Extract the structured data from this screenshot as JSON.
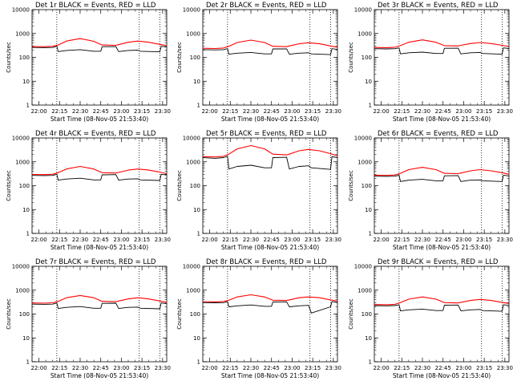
{
  "chart_data": [
    {
      "type": "line",
      "title": "Det 1r BLACK = Events, RED = LLD",
      "xlabel": "Start Time (08-Nov-05 21:53:40)",
      "ylabel": "Counts/sec",
      "ylog": true,
      "ylim": [
        1,
        10000
      ],
      "ytick_labels": [
        "1",
        "10",
        "100",
        "1000",
        "10000"
      ],
      "xlim": [
        "21:55",
        "23:33"
      ],
      "xtick_labels": [
        "22:00",
        "22:15",
        "22:30",
        "22:45",
        "23:00",
        "23:15",
        "23:30"
      ],
      "series": [
        {
          "color": "#000000",
          "x": [
            "21:55",
            "22:04",
            "22:10",
            "22:13",
            "22:14",
            "22:20",
            "22:30",
            "22:40",
            "22:45",
            "22:46",
            "22:56",
            "22:58",
            "23:05",
            "23:12",
            "23:14",
            "23:28",
            "23:29",
            "23:33"
          ],
          "y": [
            260,
            255,
            260,
            290,
            175,
            195,
            210,
            180,
            180,
            280,
            282,
            175,
            195,
            200,
            180,
            170,
            290,
            270
          ]
        },
        {
          "color": "#ff0000",
          "x": [
            "21:55",
            "22:04",
            "22:10",
            "22:14",
            "22:20",
            "22:30",
            "22:40",
            "22:46",
            "22:56",
            "22:58",
            "23:05",
            "23:12",
            "23:20",
            "23:28",
            "23:33"
          ],
          "y": [
            285,
            280,
            290,
            330,
            480,
            610,
            470,
            330,
            320,
            340,
            430,
            480,
            430,
            350,
            310
          ]
        }
      ]
    },
    {
      "type": "line",
      "title": "Det 2r BLACK = Events, RED = LLD",
      "xlabel": "Start Time (08-Nov-05 21:53:40)",
      "ylabel": "Counts/sec",
      "ylog": true,
      "ylim": [
        1,
        10000
      ],
      "ytick_labels": [
        "1",
        "10",
        "100",
        "1000",
        "10000"
      ],
      "xlim": [
        "21:55",
        "23:33"
      ],
      "xtick_labels": [
        "22:00",
        "22:15",
        "22:30",
        "22:45",
        "23:00",
        "23:15",
        "23:30"
      ],
      "series": [
        {
          "color": "#000000",
          "x": [
            "21:55",
            "22:04",
            "22:10",
            "22:13",
            "22:14",
            "22:20",
            "22:30",
            "22:40",
            "22:45",
            "22:46",
            "22:56",
            "22:58",
            "23:05",
            "23:12",
            "23:14",
            "23:28",
            "23:29",
            "23:33"
          ],
          "y": [
            210,
            205,
            210,
            230,
            135,
            150,
            160,
            140,
            140,
            225,
            228,
            135,
            150,
            155,
            140,
            130,
            230,
            215
          ]
        },
        {
          "color": "#ff0000",
          "x": [
            "21:55",
            "22:04",
            "22:10",
            "22:14",
            "22:20",
            "22:30",
            "22:40",
            "22:46",
            "22:56",
            "22:58",
            "23:05",
            "23:12",
            "23:20",
            "23:28",
            "23:33"
          ],
          "y": [
            240,
            235,
            245,
            290,
            420,
            530,
            420,
            290,
            280,
            300,
            370,
            410,
            370,
            300,
            265
          ]
        }
      ]
    },
    {
      "type": "line",
      "title": "Det 3r BLACK = Events, RED = LLD",
      "xlabel": "Start Time (08-Nov-05 21:53:40)",
      "ylabel": "Counts/sec",
      "ylog": true,
      "ylim": [
        1,
        10000
      ],
      "ytick_labels": [
        "1",
        "10",
        "100",
        "1000",
        "10000"
      ],
      "xlim": [
        "21:55",
        "23:33"
      ],
      "xtick_labels": [
        "22:00",
        "22:15",
        "22:30",
        "22:45",
        "23:00",
        "23:15",
        "23:30"
      ],
      "series": [
        {
          "color": "#000000",
          "x": [
            "21:55",
            "22:04",
            "22:10",
            "22:13",
            "22:14",
            "22:20",
            "22:30",
            "22:40",
            "22:45",
            "22:46",
            "22:56",
            "22:58",
            "23:05",
            "23:12",
            "23:14",
            "23:28",
            "23:29",
            "23:33"
          ],
          "y": [
            230,
            225,
            230,
            250,
            140,
            155,
            165,
            145,
            145,
            240,
            242,
            140,
            155,
            160,
            145,
            135,
            250,
            235
          ]
        },
        {
          "color": "#ff0000",
          "x": [
            "21:55",
            "22:04",
            "22:10",
            "22:14",
            "22:20",
            "22:30",
            "22:40",
            "22:46",
            "22:56",
            "22:58",
            "23:05",
            "23:12",
            "23:20",
            "23:28",
            "23:33"
          ],
          "y": [
            260,
            255,
            265,
            310,
            430,
            540,
            430,
            310,
            300,
            320,
            380,
            420,
            380,
            320,
            285
          ]
        }
      ]
    },
    {
      "type": "line",
      "title": "Det 4r BLACK = Events, RED = LLD",
      "xlabel": "Start Time (08-Nov-05 21:53:40)",
      "ylabel": "Counts/sec",
      "ylog": true,
      "ylim": [
        1,
        10000
      ],
      "ytick_labels": [
        "1",
        "10",
        "100",
        "1000",
        "10000"
      ],
      "xlim": [
        "21:55",
        "23:33"
      ],
      "xtick_labels": [
        "22:00",
        "22:15",
        "22:30",
        "22:45",
        "23:00",
        "23:15",
        "23:30"
      ],
      "series": [
        {
          "color": "#000000",
          "x": [
            "21:55",
            "22:04",
            "22:10",
            "22:13",
            "22:14",
            "22:20",
            "22:30",
            "22:40",
            "22:45",
            "22:46",
            "22:56",
            "22:58",
            "23:05",
            "23:12",
            "23:14",
            "23:28",
            "23:29",
            "23:33"
          ],
          "y": [
            270,
            265,
            270,
            300,
            170,
            190,
            205,
            175,
            175,
            285,
            290,
            170,
            190,
            195,
            175,
            165,
            300,
            280
          ]
        },
        {
          "color": "#ff0000",
          "x": [
            "21:55",
            "22:04",
            "22:10",
            "22:14",
            "22:20",
            "22:30",
            "22:40",
            "22:46",
            "22:56",
            "22:58",
            "23:05",
            "23:12",
            "23:20",
            "23:28",
            "23:33"
          ],
          "y": [
            295,
            290,
            300,
            350,
            500,
            640,
            500,
            350,
            340,
            360,
            450,
            500,
            450,
            370,
            320
          ]
        }
      ]
    },
    {
      "type": "line",
      "title": "Det 5r BLACK = Events, RED = LLD",
      "xlabel": "Start Time (08-Nov-05 21:53:40)",
      "ylabel": "Counts/sec",
      "ylog": true,
      "ylim": [
        1,
        10000
      ],
      "ytick_labels": [
        "1",
        "10",
        "100",
        "1000",
        "10000"
      ],
      "xlim": [
        "21:55",
        "23:33"
      ],
      "xtick_labels": [
        "22:00",
        "22:15",
        "22:30",
        "22:45",
        "23:00",
        "23:15",
        "23:30"
      ],
      "series": [
        {
          "color": "#000000",
          "x": [
            "21:55",
            "22:04",
            "22:10",
            "22:13",
            "22:14",
            "22:20",
            "22:30",
            "22:40",
            "22:45",
            "22:46",
            "22:56",
            "22:58",
            "23:05",
            "23:12",
            "23:14",
            "23:28",
            "23:29",
            "23:33"
          ],
          "y": [
            1500,
            1400,
            1500,
            1700,
            500,
            640,
            720,
            560,
            560,
            1500,
            1550,
            500,
            640,
            680,
            560,
            480,
            1650,
            1500
          ]
        },
        {
          "color": "#ff0000",
          "x": [
            "21:55",
            "22:04",
            "22:10",
            "22:14",
            "22:20",
            "22:30",
            "22:40",
            "22:46",
            "22:56",
            "22:58",
            "23:05",
            "23:12",
            "23:20",
            "23:28",
            "23:33"
          ],
          "y": [
            1650,
            1600,
            1700,
            2100,
            3500,
            4800,
            3500,
            2100,
            1950,
            2100,
            2900,
            3300,
            2900,
            2200,
            1800
          ]
        }
      ]
    },
    {
      "type": "line",
      "title": "Det 6r BLACK = Events, RED = LLD",
      "xlabel": "Start Time (08-Nov-05 21:53:40)",
      "ylabel": "Counts/sec",
      "ylog": true,
      "ylim": [
        1,
        10000
      ],
      "ytick_labels": [
        "1",
        "10",
        "100",
        "1000",
        "10000"
      ],
      "xlim": [
        "21:55",
        "23:33"
      ],
      "xtick_labels": [
        "22:00",
        "22:15",
        "22:30",
        "22:45",
        "23:00",
        "23:15",
        "23:30"
      ],
      "series": [
        {
          "color": "#000000",
          "x": [
            "21:55",
            "22:04",
            "22:10",
            "22:13",
            "22:14",
            "22:20",
            "22:30",
            "22:40",
            "22:45",
            "22:46",
            "22:56",
            "22:58",
            "23:05",
            "23:12",
            "23:14",
            "23:28",
            "23:29",
            "23:33"
          ],
          "y": [
            250,
            245,
            250,
            275,
            150,
            170,
            185,
            160,
            160,
            260,
            265,
            150,
            170,
            175,
            160,
            150,
            275,
            255
          ]
        },
        {
          "color": "#ff0000",
          "x": [
            "21:55",
            "22:04",
            "22:10",
            "22:14",
            "22:20",
            "22:30",
            "22:40",
            "22:46",
            "22:56",
            "22:58",
            "23:05",
            "23:12",
            "23:20",
            "23:28",
            "23:33"
          ],
          "y": [
            275,
            270,
            280,
            330,
            470,
            590,
            470,
            330,
            320,
            340,
            420,
            470,
            420,
            350,
            300
          ]
        }
      ]
    },
    {
      "type": "line",
      "title": "Det 7r BLACK = Events, RED = LLD",
      "xlabel": "Start Time (08-Nov-05 21:53:40)",
      "ylabel": "Counts/sec",
      "ylog": true,
      "ylim": [
        1,
        10000
      ],
      "ytick_labels": [
        "1",
        "10",
        "100",
        "1000",
        "10000"
      ],
      "xlim": [
        "21:55",
        "23:33"
      ],
      "xtick_labels": [
        "22:00",
        "22:15",
        "22:30",
        "22:45",
        "23:00",
        "23:15",
        "23:30"
      ],
      "series": [
        {
          "color": "#000000",
          "x": [
            "21:55",
            "22:04",
            "22:10",
            "22:13",
            "22:14",
            "22:20",
            "22:30",
            "22:40",
            "22:45",
            "22:46",
            "22:56",
            "22:58",
            "23:05",
            "23:12",
            "23:14",
            "23:28",
            "23:29",
            "23:33"
          ],
          "y": [
            260,
            255,
            260,
            290,
            170,
            190,
            205,
            175,
            175,
            280,
            285,
            170,
            190,
            195,
            175,
            165,
            290,
            270
          ]
        },
        {
          "color": "#ff0000",
          "x": [
            "21:55",
            "22:04",
            "22:10",
            "22:14",
            "22:20",
            "22:30",
            "22:40",
            "22:46",
            "22:56",
            "22:58",
            "23:05",
            "23:12",
            "23:20",
            "23:28",
            "23:33"
          ],
          "y": [
            290,
            285,
            295,
            340,
            480,
            600,
            480,
            340,
            330,
            350,
            430,
            480,
            430,
            350,
            310
          ]
        }
      ]
    },
    {
      "type": "line",
      "title": "Det 8r BLACK = Events, RED = LLD",
      "xlabel": "Start Time (08-Nov-05 21:53:40)",
      "ylabel": "Counts/sec",
      "ylog": true,
      "ylim": [
        1,
        10000
      ],
      "ytick_labels": [
        "1",
        "10",
        "100",
        "1000",
        "10000"
      ],
      "xlim": [
        "21:55",
        "23:33"
      ],
      "xtick_labels": [
        "22:00",
        "22:15",
        "22:30",
        "22:45",
        "23:00",
        "23:15",
        "23:30"
      ],
      "series": [
        {
          "color": "#000000",
          "x": [
            "21:55",
            "22:04",
            "22:10",
            "22:13",
            "22:14",
            "22:20",
            "22:30",
            "22:40",
            "22:45",
            "22:46",
            "22:56",
            "22:58",
            "23:05",
            "23:12",
            "23:14",
            "23:28",
            "23:29",
            "23:33"
          ],
          "y": [
            300,
            295,
            300,
            330,
            200,
            220,
            240,
            210,
            210,
            320,
            325,
            200,
            220,
            230,
            110,
            200,
            330,
            310
          ]
        },
        {
          "color": "#ff0000",
          "x": [
            "21:55",
            "22:04",
            "22:10",
            "22:14",
            "22:20",
            "22:30",
            "22:40",
            "22:46",
            "22:56",
            "22:58",
            "23:05",
            "23:12",
            "23:20",
            "23:28",
            "23:33"
          ],
          "y": [
            330,
            325,
            335,
            380,
            520,
            640,
            520,
            380,
            370,
            390,
            480,
            520,
            480,
            390,
            350
          ]
        }
      ]
    },
    {
      "type": "line",
      "title": "Det 9r BLACK = Events, RED = LLD",
      "xlabel": "Start Time (08-Nov-05 21:53:40)",
      "ylabel": "Counts/sec",
      "ylog": true,
      "ylim": [
        1,
        10000
      ],
      "ytick_labels": [
        "1",
        "10",
        "100",
        "1000",
        "10000"
      ],
      "xlim": [
        "21:55",
        "23:33"
      ],
      "xtick_labels": [
        "22:00",
        "22:15",
        "22:30",
        "22:45",
        "23:00",
        "23:15",
        "23:30"
      ],
      "series": [
        {
          "color": "#000000",
          "x": [
            "21:55",
            "22:04",
            "22:10",
            "22:13",
            "22:14",
            "22:20",
            "22:30",
            "22:40",
            "22:45",
            "22:46",
            "22:56",
            "22:58",
            "23:05",
            "23:12",
            "23:14",
            "23:28",
            "23:29",
            "23:33"
          ],
          "y": [
            225,
            220,
            225,
            245,
            135,
            150,
            160,
            140,
            140,
            235,
            238,
            135,
            150,
            155,
            140,
            130,
            245,
            230
          ]
        },
        {
          "color": "#ff0000",
          "x": [
            "21:55",
            "22:04",
            "22:10",
            "22:14",
            "22:20",
            "22:30",
            "22:40",
            "22:46",
            "22:56",
            "22:58",
            "23:05",
            "23:12",
            "23:20",
            "23:28",
            "23:33"
          ],
          "y": [
            250,
            245,
            255,
            300,
            420,
            520,
            420,
            300,
            290,
            310,
            370,
            410,
            370,
            310,
            275
          ]
        }
      ]
    }
  ]
}
